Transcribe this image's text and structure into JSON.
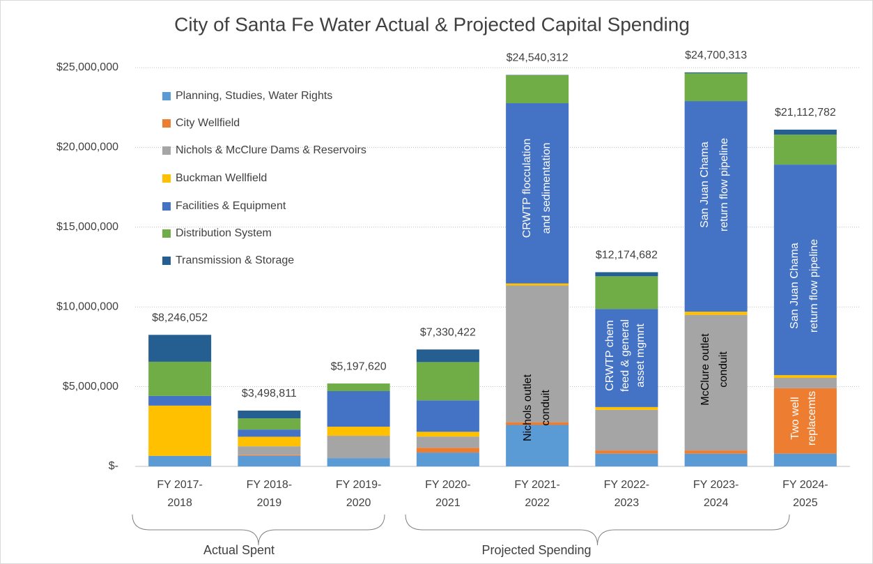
{
  "chart_data": {
    "type": "stacked_bar",
    "title": "City of Santa Fe Water Actual & Projected Capital Spending",
    "categories": [
      [
        "FY 2017-",
        "2018"
      ],
      [
        "FY 2018-",
        "2019"
      ],
      [
        "FY 2019-",
        "2020"
      ],
      [
        "FY 2020-",
        "2021"
      ],
      [
        "FY 2021-",
        "2022"
      ],
      [
        "FY 2022-",
        "2023"
      ],
      [
        "FY 2023-",
        "2024"
      ],
      [
        "FY 2024-",
        "2025"
      ]
    ],
    "series": [
      {
        "name": "Planning, Studies, Water Rights",
        "color": "#5b9bd5",
        "values": [
          660000,
          660000,
          520000,
          870000,
          2600000,
          800000,
          800000,
          800000
        ]
      },
      {
        "name": "City Wellfield",
        "color": "#ed7d31",
        "values": [
          0,
          50000,
          0,
          300000,
          170000,
          200000,
          200000,
          4100000
        ]
      },
      {
        "name": "Nichols & McClure Dams & Reservoirs",
        "color": "#a5a5a5",
        "values": [
          0,
          550000,
          1400000,
          700000,
          8570000,
          2550000,
          8500000,
          650000
        ]
      },
      {
        "name": "Buckman Wellfield",
        "color": "#ffc000",
        "values": [
          3150000,
          600000,
          570000,
          300000,
          130000,
          170000,
          200000,
          170000
        ]
      },
      {
        "name": "Facilities & Equipment",
        "color": "#4472c4",
        "values": [
          610000,
          450000,
          2230000,
          1970000,
          11300000,
          6150000,
          13200000,
          13200000
        ]
      },
      {
        "name": "Distribution System",
        "color": "#70ad47",
        "values": [
          2140000,
          700000,
          477620,
          2400000,
          1750000,
          2050000,
          1750000,
          1880000
        ]
      },
      {
        "name": "Transmission & Storage",
        "color": "#255e91",
        "values": [
          1686052,
          488811,
          0,
          790422,
          20312,
          254682,
          50313,
          312782
        ]
      }
    ],
    "totals": [
      8246052,
      3498811,
      5197620,
      7330422,
      24540312,
      12174682,
      24700313,
      21112782
    ],
    "total_labels": [
      "$8,246,052",
      "$3,498,811",
      "$5,197,620",
      "$7,330,422",
      "$24,540,312",
      "$12,174,682",
      "$24,700,313",
      "$21,112,782"
    ],
    "ylim": [
      0,
      25000000
    ],
    "yticks": [
      {
        "value": 0,
        "label": "$-"
      },
      {
        "value": 5000000,
        "label": "$5,000,000"
      },
      {
        "value": 10000000,
        "label": "$10,000,000"
      },
      {
        "value": 15000000,
        "label": "$15,000,000"
      },
      {
        "value": 20000000,
        "label": "$20,000,000"
      },
      {
        "value": 25000000,
        "label": "$25,000,000"
      }
    ],
    "grid": true,
    "legend": "upper left",
    "annotations": [
      [
        "CRWTP flocculation",
        "and sedimentation"
      ],
      [
        "Nichols outlet",
        "conduit"
      ],
      [
        "CRWTP chem",
        "feed & general",
        "asset mgmnt"
      ],
      [
        "San Juan Chama",
        "return flow pipeline"
      ],
      [
        "McClure outlet",
        "conduit"
      ],
      [
        "San Juan Chama",
        "return flow pipeline"
      ],
      [
        "Two well",
        "replacemts"
      ]
    ],
    "groups": [
      "Actual  Spent",
      "Projected Spending"
    ]
  }
}
